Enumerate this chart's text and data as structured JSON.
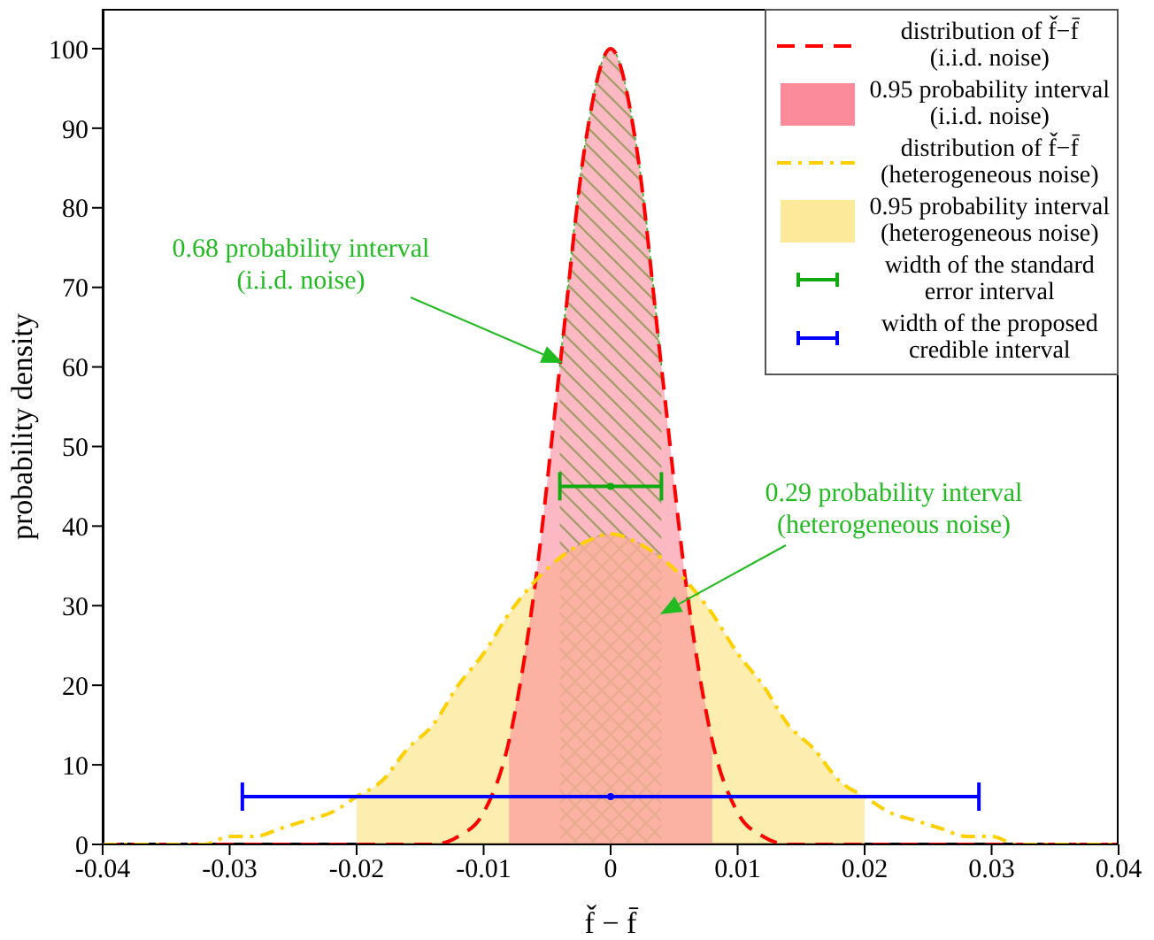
{
  "chart_data": {
    "type": "line",
    "xlabel": "f̌ − f̄",
    "ylabel": "probability density",
    "xlim": [
      -0.04,
      0.04
    ],
    "xticks": [
      -0.04,
      -0.03,
      -0.02,
      -0.01,
      0,
      0.01,
      0.02,
      0.03,
      0.04
    ],
    "ylim": [
      0,
      105
    ],
    "yticks": [
      0,
      10,
      20,
      30,
      40,
      50,
      60,
      70,
      80,
      90,
      100
    ],
    "legend": "top right",
    "grid": false,
    "marker": "none",
    "series": [
      {
        "name": "distribution of f̌−f̄\n(i.i.d. noise)",
        "color": "#ff0000",
        "line_style": "dashed",
        "x": [
          -0.04,
          -0.038,
          -0.036,
          -0.034,
          -0.032,
          -0.03,
          -0.028,
          -0.026,
          -0.024,
          -0.022,
          -0.02,
          -0.018,
          -0.016,
          -0.014,
          -0.012,
          -0.01,
          -0.008,
          -0.006,
          -0.004,
          -0.002,
          0,
          0.002,
          0.004,
          0.006,
          0.008,
          0.01,
          0.012,
          0.014,
          0.016,
          0.018,
          0.02,
          0.022,
          0.024,
          0.026,
          0.028,
          0.03,
          0.032,
          0.034,
          0.036,
          0.038,
          0.04
        ],
        "values": [
          0,
          0,
          0,
          0,
          0,
          0,
          0,
          0,
          0,
          0,
          0,
          0,
          0,
          0,
          1,
          4,
          13,
          32,
          60,
          88,
          100,
          88,
          60,
          32,
          13,
          4,
          1,
          0,
          0,
          0,
          0,
          0,
          0,
          0,
          0,
          0,
          0,
          0,
          0,
          0,
          0
        ]
      },
      {
        "type": "area",
        "name": "0.95 probability interval\n(i.i.d. noise)",
        "color": "#fb8a9b",
        "x": [
          -0.008,
          -0.006,
          -0.004,
          -0.002,
          0,
          0.002,
          0.004,
          0.006,
          0.008
        ],
        "values": [
          13,
          32,
          60,
          88,
          100,
          88,
          60,
          32,
          13
        ]
      },
      {
        "name": "distribution of f̌−f̄\n(heterogeneous noise)",
        "color": "#ffd000",
        "line_style": "dashdot",
        "x": [
          -0.04,
          -0.038,
          -0.036,
          -0.034,
          -0.032,
          -0.03,
          -0.028,
          -0.026,
          -0.024,
          -0.022,
          -0.02,
          -0.018,
          -0.016,
          -0.014,
          -0.012,
          -0.01,
          -0.008,
          -0.006,
          -0.004,
          -0.002,
          0,
          0.002,
          0.004,
          0.006,
          0.008,
          0.01,
          0.012,
          0.014,
          0.016,
          0.018,
          0.02,
          0.022,
          0.024,
          0.026,
          0.028,
          0.03,
          0.032,
          0.034,
          0.036,
          0.038,
          0.04
        ],
        "values": [
          0,
          0,
          0,
          0,
          0,
          1,
          1,
          2,
          3,
          4,
          6,
          8,
          12,
          15,
          20,
          24,
          29,
          33,
          36,
          38,
          39,
          38,
          36,
          33,
          29,
          24,
          20,
          15,
          12,
          8,
          6,
          4,
          3,
          2,
          1,
          1,
          0,
          0,
          0,
          0,
          0
        ]
      },
      {
        "type": "area",
        "name": "0.95 probability interval\n(heterogeneous noise)",
        "color": "#fde99a",
        "x": [
          -0.02,
          -0.018,
          -0.016,
          -0.014,
          -0.012,
          -0.01,
          -0.008,
          -0.006,
          -0.004,
          -0.002,
          0,
          0.002,
          0.004,
          0.006,
          0.008,
          0.01,
          0.012,
          0.014,
          0.016,
          0.018,
          0.02
        ],
        "values": [
          6,
          8,
          12,
          15,
          20,
          24,
          29,
          33,
          36,
          38,
          39,
          38,
          36,
          33,
          29,
          24,
          20,
          15,
          12,
          8,
          6
        ]
      },
      {
        "type": "area",
        "color": "#22bb22",
        "x": [
          -0.004,
          -0.002,
          0,
          0.002,
          0.004
        ],
        "values": [
          60,
          88,
          100,
          88,
          60
        ]
      },
      {
        "type": "area",
        "color": "#22bb22",
        "x": [
          -0.004,
          -0.002,
          0,
          0.002,
          0.004
        ],
        "values": [
          36,
          38,
          39,
          38,
          36
        ]
      },
      {
        "type": "scatter",
        "name": "width of the standard\nerror interval",
        "color": "#11aa11",
        "marker": "circle",
        "x": [
          0
        ],
        "values": [
          45
        ],
        "xerrors": [
          0.004
        ]
      },
      {
        "type": "scatter",
        "name": "width of the proposed\ncredible interval",
        "color": "#0000ff",
        "marker": "circle",
        "x": [
          0
        ],
        "values": [
          6
        ],
        "xerrors": [
          0.029
        ]
      }
    ],
    "annotations": [
      "0.68 probability interval\n(i.i.d. noise)",
      "0.29 probability interval\n(heterogeneous noise)"
    ]
  }
}
